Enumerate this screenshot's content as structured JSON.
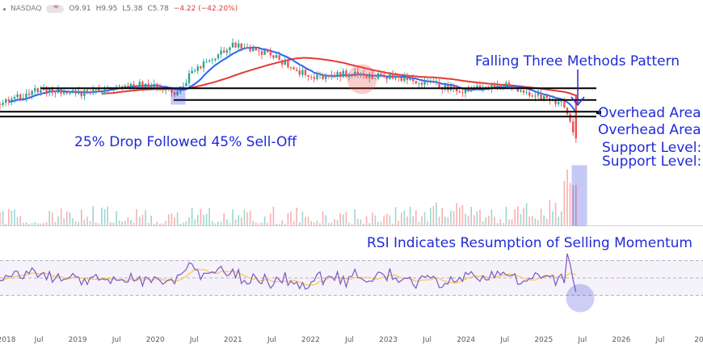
{
  "header": {
    "symbol": "NASDAQ",
    "open": "O9.91",
    "high": "H9.95",
    "low": "L5.38",
    "close": "C5.78",
    "change": "−4.22 (−42.20%)"
  },
  "annotations": {
    "pattern": "Falling Three Methods Pattern",
    "overhead_1": "Overhead Area",
    "overhead_2": "Overhead Area",
    "support_1": "Support Level:",
    "support_2": "Support Level:",
    "drop": "25% Drop Followed 45% Sell-Off",
    "rsi": "RSI Indicates Resumption of Selling Momentum"
  },
  "x_labels": [
    "2018",
    "Jul",
    "2019",
    "Jul",
    "2020",
    "Jul",
    "2021",
    "Jul",
    "2022",
    "Jul",
    "2023",
    "Jul",
    "2024",
    "Jul",
    "2025",
    "Jul",
    "2026",
    "Jul",
    "20"
  ],
  "colors": {
    "up": "#26a69a",
    "down": "#ef5350",
    "ma50": "#2962ff",
    "ma200": "#e53935",
    "rsi": "#7e57c2",
    "rsi_ma": "#f2c94c",
    "annotation": "#1f2bd8"
  },
  "chart_data": {
    "type": "line",
    "price": {
      "x": [
        "2018-01",
        "2018-07",
        "2019-01",
        "2019-07",
        "2020-01",
        "2020-04",
        "2020-07",
        "2021-01",
        "2021-04",
        "2021-07",
        "2022-01",
        "2022-07",
        "2023-01",
        "2023-07",
        "2024-01",
        "2024-07",
        "2025-01",
        "2025-04",
        "2025-06"
      ],
      "close": [
        9.0,
        10.4,
        10.0,
        10.8,
        10.9,
        9.7,
        12.3,
        14.7,
        14.2,
        13.6,
        11.5,
        11.9,
        11.6,
        11.0,
        10.2,
        11.0,
        9.5,
        9.2,
        5.8
      ],
      "series": [
        {
          "name": "",
          "kind": "sma50"
        },
        {
          "name": "",
          "kind": "sma200"
        }
      ]
    },
    "levels": {
      "overhead_high": 10.5,
      "overhead_low": 9.4,
      "support_high": 8.3,
      "support_low": 8.0
    },
    "volume": {
      "spike_month": "2025-06"
    },
    "rsi": {
      "upper": 70,
      "middle": 50,
      "lower": 30
    },
    "x_range": [
      "2018-01",
      "2026-12"
    ]
  }
}
